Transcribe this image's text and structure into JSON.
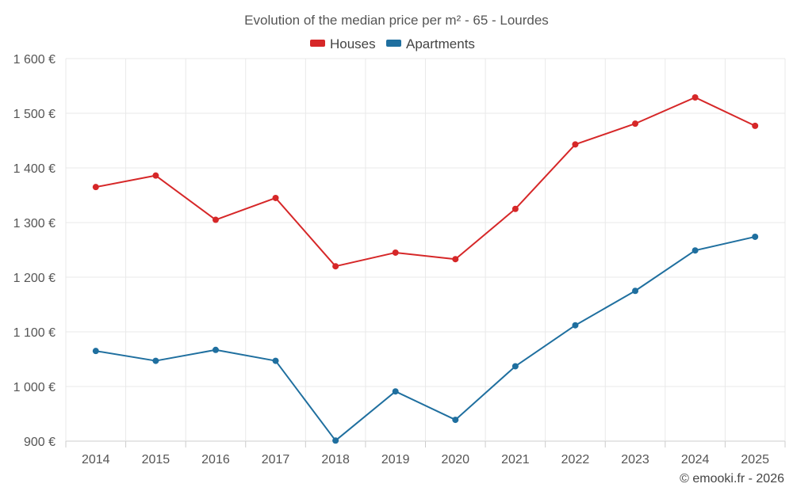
{
  "chart_data": {
    "type": "line",
    "title": "Evolution of the median price per m² - 65 - Lourdes",
    "categories": [
      "2014",
      "2015",
      "2016",
      "2017",
      "2018",
      "2019",
      "2020",
      "2021",
      "2022",
      "2023",
      "2024",
      "2025"
    ],
    "series": [
      {
        "name": "Houses",
        "color": "#d62728",
        "values": [
          1365,
          1386,
          1305,
          1345,
          1220,
          1245,
          1233,
          1325,
          1443,
          1481,
          1529,
          1477
        ]
      },
      {
        "name": "Apartments",
        "color": "#1f6f9f",
        "values": [
          1065,
          1047,
          1067,
          1047,
          901,
          991,
          939,
          1037,
          1112,
          1175,
          1249,
          1274
        ]
      }
    ],
    "y_ticks": [
      "900 €",
      "1 000 €",
      "1 100 €",
      "1 200 €",
      "1 300 €",
      "1 400 €",
      "1 500 €",
      "1 600 €"
    ],
    "ylim": [
      900,
      1600
    ],
    "legend_position": "top-center",
    "grid": true,
    "xlabel": "",
    "ylabel": "",
    "credit": "© emooki.fr - 2026"
  }
}
